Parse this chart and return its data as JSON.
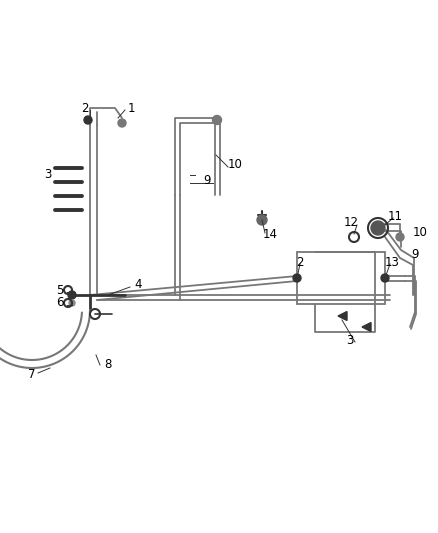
{
  "bg_color": "#ffffff",
  "line_color": "#888888",
  "dark_color": "#333333",
  "label_color": "#000000",
  "fig_width": 4.38,
  "fig_height": 5.33,
  "dpi": 100
}
